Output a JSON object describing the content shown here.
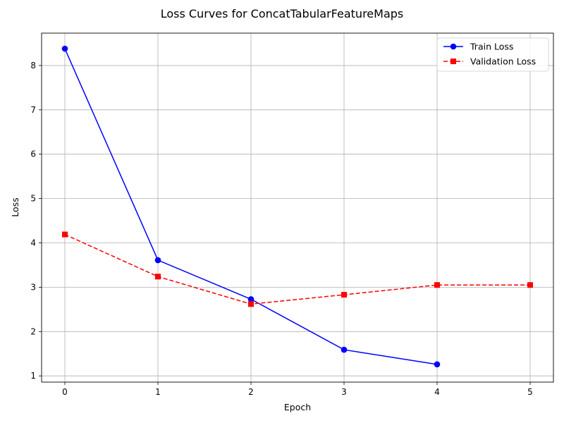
{
  "chart_data": {
    "type": "line",
    "title": "Loss Curves for ConcatTabularFeatureMaps",
    "xlabel": "Epoch",
    "ylabel": "Loss",
    "xlim": [
      -0.25,
      5.25
    ],
    "ylim": [
      0.86,
      8.73
    ],
    "xticks": [
      0,
      1,
      2,
      3,
      4,
      5
    ],
    "yticks": [
      1,
      2,
      3,
      4,
      5,
      6,
      7,
      8
    ],
    "grid": true,
    "legend_position": "top-right",
    "series": [
      {
        "name": "Train Loss",
        "color": "#0000ff",
        "line_style": "solid",
        "marker": "circle",
        "x": [
          0,
          1,
          2,
          3,
          4
        ],
        "values": [
          8.38,
          3.61,
          2.73,
          1.59,
          1.26
        ]
      },
      {
        "name": "Validation Loss",
        "color": "#ff0000",
        "line_style": "dashed",
        "marker": "square",
        "x": [
          0,
          1,
          2,
          3,
          4,
          5
        ],
        "values": [
          4.19,
          3.24,
          2.62,
          2.83,
          3.05,
          3.05
        ]
      }
    ]
  }
}
